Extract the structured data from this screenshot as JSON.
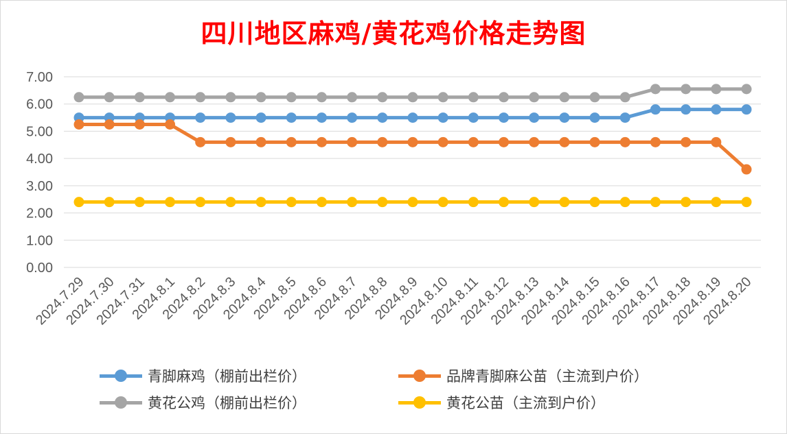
{
  "title": "四川地区麻鸡/黄花鸡价格走势图",
  "chart_data": {
    "type": "line",
    "title": "四川地区麻鸡/黄花鸡价格走势图",
    "categories": [
      "2024.7.29",
      "2024.7.30",
      "2024.7.31",
      "2024.8.1",
      "2024.8.2",
      "2024.8.3",
      "2024.8.4",
      "2024.8.5",
      "2024.8.6",
      "2024.8.7",
      "2024.8.8",
      "2024.8.9",
      "2024.8.10",
      "2024.8.11",
      "2024.8.12",
      "2024.8.13",
      "2024.8.14",
      "2024.8.15",
      "2024.8.16",
      "2024.8.17",
      "2024.8.18",
      "2024.8.19",
      "2024.8.20"
    ],
    "ylim": [
      0,
      7
    ],
    "yticks": [
      "0.00",
      "1.00",
      "2.00",
      "3.00",
      "4.00",
      "5.00",
      "6.00",
      "7.00"
    ],
    "grid": true,
    "legend_position": "bottom",
    "series": [
      {
        "name": "青脚麻鸡（棚前出栏价）",
        "color": "#5b9bd5",
        "values": [
          5.5,
          5.5,
          5.5,
          5.5,
          5.5,
          5.5,
          5.5,
          5.5,
          5.5,
          5.5,
          5.5,
          5.5,
          5.5,
          5.5,
          5.5,
          5.5,
          5.5,
          5.5,
          5.5,
          5.8,
          5.8,
          5.8,
          5.8
        ]
      },
      {
        "name": "品牌青脚麻公苗（主流到户价）",
        "color": "#ed7d31",
        "values": [
          5.25,
          5.25,
          5.25,
          5.25,
          4.6,
          4.6,
          4.6,
          4.6,
          4.6,
          4.6,
          4.6,
          4.6,
          4.6,
          4.6,
          4.6,
          4.6,
          4.6,
          4.6,
          4.6,
          4.6,
          4.6,
          4.6,
          3.6
        ]
      },
      {
        "name": "黄花公鸡（棚前出栏价）",
        "color": "#a5a5a5",
        "values": [
          6.25,
          6.25,
          6.25,
          6.25,
          6.25,
          6.25,
          6.25,
          6.25,
          6.25,
          6.25,
          6.25,
          6.25,
          6.25,
          6.25,
          6.25,
          6.25,
          6.25,
          6.25,
          6.25,
          6.55,
          6.55,
          6.55,
          6.55
        ]
      },
      {
        "name": "黄花公苗（主流到户价）",
        "color": "#ffc000",
        "values": [
          2.4,
          2.4,
          2.4,
          2.4,
          2.4,
          2.4,
          2.4,
          2.4,
          2.4,
          2.4,
          2.4,
          2.4,
          2.4,
          2.4,
          2.4,
          2.4,
          2.4,
          2.4,
          2.4,
          2.4,
          2.4,
          2.4,
          2.4
        ]
      }
    ]
  }
}
